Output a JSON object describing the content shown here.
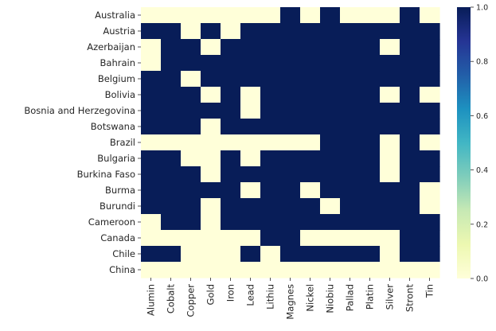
{
  "chart_data": {
    "type": "heatmap",
    "title": "",
    "xlabel": "",
    "ylabel": "",
    "columns": [
      "Alumin",
      "Cobalt",
      "Copper",
      "Gold",
      "Iron",
      "Lead",
      "Lithiu",
      "Magnes",
      "Nickel",
      "Niobiu",
      "Pallad",
      "Platin",
      "Silver",
      "Stront",
      "Tin"
    ],
    "rows": [
      "Australia",
      "Austria",
      "Azerbaijan",
      "Bahrain",
      "Belgium",
      "Bolivia",
      "Bosnia and Herzegovina",
      "Botswana",
      "Brazil",
      "Bulgaria",
      "Burkina Faso",
      "Burma",
      "Burundi",
      "Cameroon",
      "Canada",
      "Chile",
      "China"
    ],
    "values": [
      [
        0,
        0,
        0,
        0,
        0,
        0,
        0,
        1,
        0,
        1,
        0,
        0,
        0,
        1,
        0
      ],
      [
        1,
        1,
        0,
        1,
        0,
        1,
        1,
        1,
        1,
        1,
        1,
        1,
        1,
        1,
        1
      ],
      [
        0,
        1,
        1,
        0,
        1,
        1,
        1,
        1,
        1,
        1,
        1,
        1,
        0,
        1,
        1
      ],
      [
        0,
        1,
        1,
        1,
        1,
        1,
        1,
        1,
        1,
        1,
        1,
        1,
        1,
        1,
        1
      ],
      [
        1,
        1,
        0,
        1,
        1,
        1,
        1,
        1,
        1,
        1,
        1,
        1,
        1,
        1,
        1
      ],
      [
        1,
        1,
        1,
        0,
        1,
        0,
        1,
        1,
        1,
        1,
        1,
        1,
        0,
        1,
        0
      ],
      [
        1,
        1,
        1,
        1,
        1,
        0,
        1,
        1,
        1,
        1,
        1,
        1,
        1,
        1,
        1
      ],
      [
        1,
        1,
        1,
        0,
        1,
        1,
        1,
        1,
        1,
        1,
        1,
        1,
        1,
        1,
        1
      ],
      [
        0,
        0,
        0,
        0,
        0,
        0,
        0,
        0,
        0,
        1,
        1,
        1,
        0,
        1,
        0
      ],
      [
        1,
        1,
        0,
        0,
        1,
        0,
        1,
        1,
        1,
        1,
        1,
        1,
        0,
        1,
        1
      ],
      [
        1,
        1,
        1,
        0,
        1,
        1,
        1,
        1,
        1,
        1,
        1,
        1,
        0,
        1,
        1
      ],
      [
        1,
        1,
        1,
        1,
        1,
        0,
        1,
        1,
        0,
        1,
        1,
        1,
        1,
        1,
        0
      ],
      [
        1,
        1,
        1,
        0,
        1,
        1,
        1,
        1,
        1,
        0,
        1,
        1,
        1,
        1,
        0
      ],
      [
        0,
        1,
        1,
        0,
        1,
        1,
        1,
        1,
        1,
        1,
        1,
        1,
        1,
        1,
        1
      ],
      [
        0,
        0,
        0,
        0,
        0,
        0,
        1,
        1,
        0,
        0,
        0,
        0,
        0,
        1,
        1
      ],
      [
        1,
        1,
        0,
        0,
        0,
        1,
        0,
        1,
        1,
        1,
        1,
        1,
        0,
        1,
        1
      ],
      [
        0,
        0,
        0,
        0,
        0,
        0,
        0,
        0,
        0,
        0,
        0,
        0,
        0,
        0,
        0
      ]
    ],
    "colormap": "YlGnBu",
    "colorbar": {
      "range": [
        0.0,
        1.0
      ],
      "ticks": [
        "0.0",
        "0.2",
        "0.4",
        "0.6",
        "0.8",
        "1.0"
      ]
    },
    "colors": {
      "low": "#ffffd9",
      "high": "#081d58"
    }
  }
}
